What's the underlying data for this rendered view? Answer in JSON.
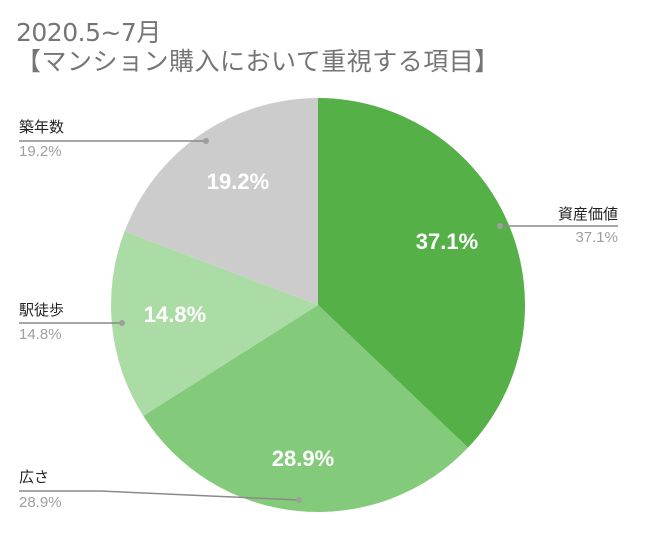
{
  "title": {
    "line1": "2020.5~7月",
    "line2": "【マンション購入において重視する項目】"
  },
  "chart_data": {
    "type": "pie",
    "title": "2020.5~7月 【マンション購入において重視する項目】",
    "categories": [
      "資産価値",
      "広さ",
      "駅徒歩",
      "築年数"
    ],
    "values": [
      37.1,
      28.9,
      14.8,
      19.2
    ],
    "unit": "%",
    "colors": [
      "#55b048",
      "#83ca7a",
      "#acdca5",
      "#cccccc"
    ],
    "start_angle_deg": 0,
    "direction": "clockwise",
    "slice_labels": [
      "37.1%",
      "28.9%",
      "14.8%",
      "19.2%"
    ],
    "legend_position": "labeled (callout lines)"
  },
  "callouts": [
    {
      "name": "資産価値",
      "value": "37.1%"
    },
    {
      "name": "広さ",
      "value": "28.9%"
    },
    {
      "name": "駅徒歩",
      "value": "14.8%"
    },
    {
      "name": "築年数",
      "value": "19.2%"
    }
  ]
}
